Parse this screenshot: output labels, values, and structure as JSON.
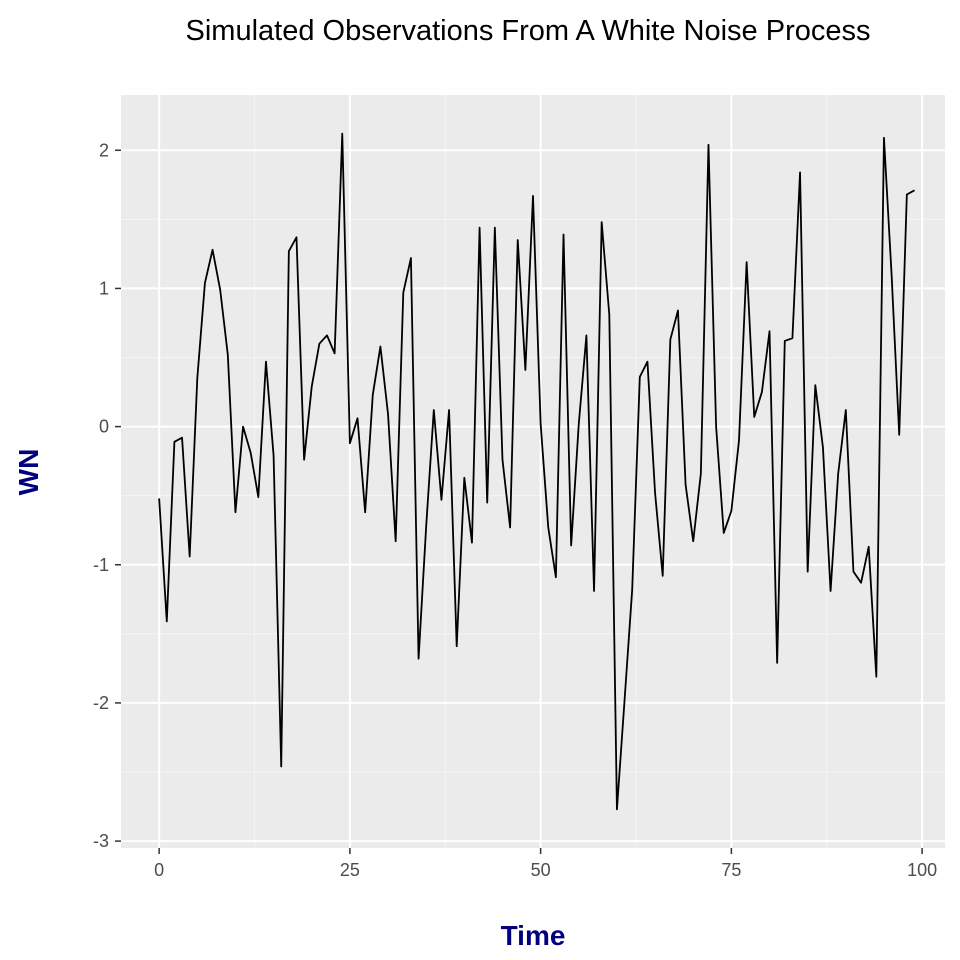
{
  "chart_data": {
    "type": "line",
    "title": "Simulated Observations From A White Noise Process",
    "xlabel": "Time",
    "ylabel": "WN",
    "xlim": [
      -5,
      103
    ],
    "ylim": [
      -3.05,
      2.4
    ],
    "x_ticks": [
      0,
      25,
      50,
      75,
      100
    ],
    "x_tick_labels": [
      "0",
      "25",
      "50",
      "75",
      "100"
    ],
    "y_ticks": [
      2,
      1,
      0,
      -1,
      -2,
      -3
    ],
    "y_tick_labels": [
      "2",
      "1",
      "0",
      "-1",
      "-2",
      "-3"
    ],
    "grid": true,
    "series": [
      {
        "x": [
          0,
          1,
          2,
          3,
          4,
          5,
          6,
          7,
          8,
          9,
          10,
          11,
          12,
          13,
          14,
          15,
          16,
          17,
          18,
          19,
          20,
          21,
          22,
          23,
          24,
          25,
          26,
          27,
          28,
          29,
          30,
          31,
          32,
          33,
          34,
          35,
          36,
          37,
          38,
          39,
          40,
          41,
          42,
          43,
          44,
          45,
          46,
          47,
          48,
          49,
          50,
          51,
          52,
          53,
          54,
          55,
          56,
          57,
          58,
          59,
          60,
          61,
          62,
          63,
          64,
          65,
          66,
          67,
          68,
          69,
          70,
          71,
          72,
          73,
          74,
          75,
          76,
          77,
          78,
          79,
          80,
          81,
          82,
          83,
          84,
          85,
          86,
          87,
          88,
          89,
          90,
          91,
          92,
          93,
          94,
          95,
          96,
          97,
          98,
          99
        ],
        "values": [
          -0.52,
          -1.41,
          -0.11,
          -0.08,
          -0.94,
          0.35,
          1.04,
          1.28,
          0.99,
          0.52,
          -0.62,
          0.0,
          -0.19,
          -0.51,
          0.47,
          -0.21,
          -2.46,
          1.27,
          1.37,
          -0.24,
          0.29,
          0.6,
          0.66,
          0.53,
          2.12,
          -0.12,
          0.06,
          -0.62,
          0.23,
          0.58,
          0.09,
          -0.83,
          0.97,
          1.22,
          -1.68,
          -0.72,
          0.12,
          -0.53,
          0.12,
          -1.59,
          -0.37,
          -0.84,
          1.44,
          -0.55,
          1.44,
          -0.24,
          -0.73,
          1.35,
          0.41,
          1.67,
          0.02,
          -0.73,
          -1.09,
          1.39,
          -0.86,
          0.02,
          0.66,
          -1.19,
          1.48,
          0.81,
          -2.77,
          -1.98,
          -1.18,
          0.36,
          0.47,
          -0.48,
          -1.08,
          0.63,
          0.84,
          -0.42,
          -0.83,
          -0.34,
          2.04,
          0.0,
          -0.77,
          -0.61,
          -0.1,
          1.19,
          0.07,
          0.25,
          0.69,
          -1.71,
          0.62,
          0.64,
          1.84,
          -1.05,
          0.3,
          -0.15,
          -1.19,
          -0.34,
          0.12,
          -1.05,
          -1.13,
          -0.87,
          -1.81,
          2.09,
          1.1,
          -0.06,
          1.68,
          1.71
        ]
      }
    ],
    "colors": {
      "panel_background": "#ebebeb",
      "grid_major": "#ffffff",
      "grid_minor": "#f5f5f5",
      "line": "#000000",
      "axis_title": "#000080",
      "tick_label": "#4d4d4d"
    }
  }
}
